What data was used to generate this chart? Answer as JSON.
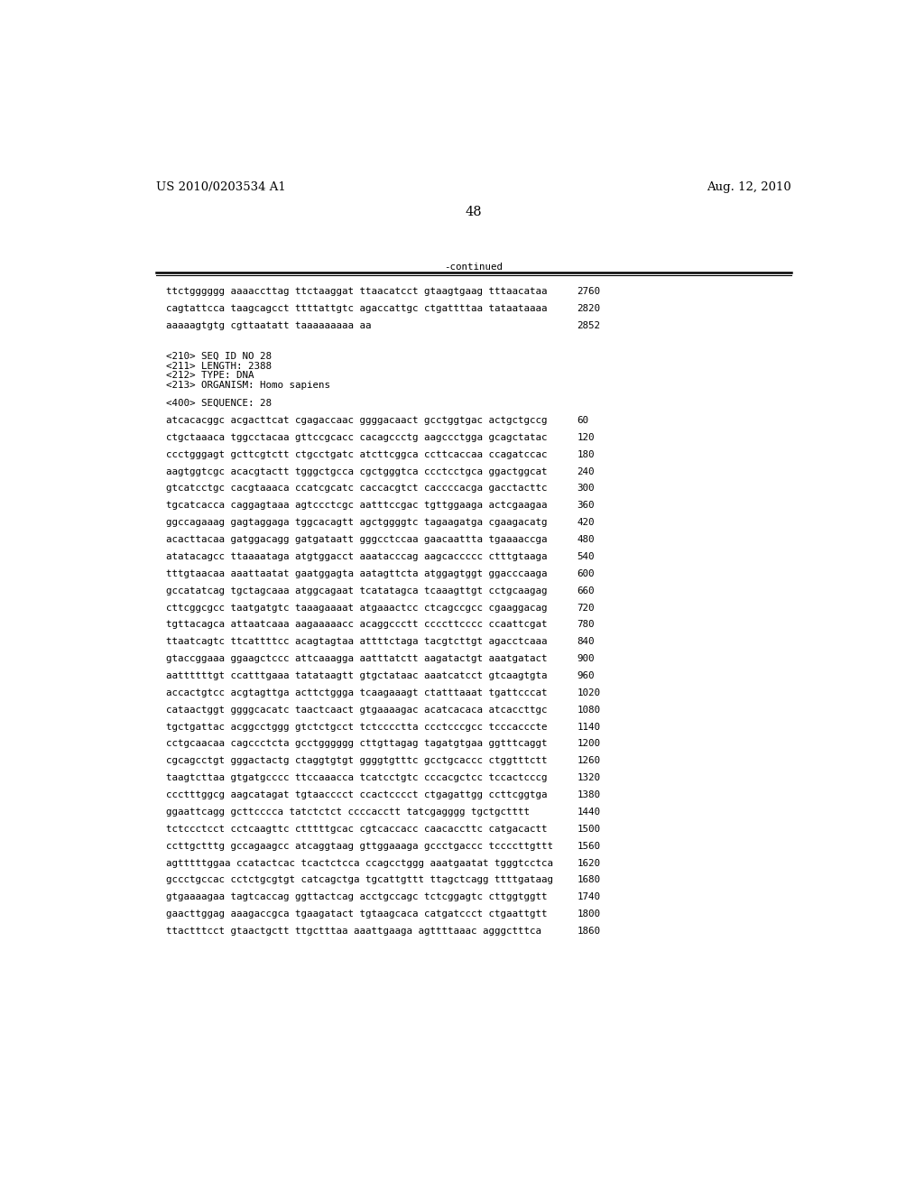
{
  "header_left": "US 2010/0203534 A1",
  "header_right": "Aug. 12, 2010",
  "page_number": "48",
  "continued_label": "-continued",
  "background_color": "#ffffff",
  "text_color": "#000000",
  "font_size_header": 9.5,
  "font_size_page": 10.5,
  "font_size_mono": 7.8,
  "continued_lines": [
    [
      "ttctgggggg aaaaccttag ttctaaggat ttaacatcct gtaagtgaag tttaacataa",
      "2760"
    ],
    [
      "cagtattcca taagcagcct ttttattgtc agaccattgc ctgattttaa tataataaaa",
      "2820"
    ],
    [
      "aaaaagtgtg cgttaatatt taaaaaaaaa aa",
      "2852"
    ]
  ],
  "seq_info": [
    "<210> SEQ ID NO 28",
    "<211> LENGTH: 2388",
    "<212> TYPE: DNA",
    "<213> ORGANISM: Homo sapiens"
  ],
  "seq_label": "<400> SEQUENCE: 28",
  "sequence_lines": [
    [
      "atcacacggc acgacttcat cgagaccaac ggggacaact gcctggtgac actgctgccg",
      "60"
    ],
    [
      "ctgctaaaca tggcctacaa gttccgcacc cacagccctg aagccctgga gcagctatac",
      "120"
    ],
    [
      "ccctgggagt gcttcgtctt ctgcctgatc atcttcggca ccttcaccaa ccagatccac",
      "180"
    ],
    [
      "aagtggtcgc acacgtactt tgggctgcca cgctgggtca ccctcctgca ggactggcat",
      "240"
    ],
    [
      "gtcatcctgc cacgtaaaca ccatcgcatc caccacgtct caccccacga gacctacttc",
      "300"
    ],
    [
      "tgcatcacca caggagtaaa agtccctcgc aatttccgac tgttggaaga actcgaagaa",
      "360"
    ],
    [
      "ggccagaaag gagtaggaga tggcacagtt agctggggtc tagaagatga cgaagacatg",
      "420"
    ],
    [
      "acacttacaa gatggacagg gatgataatt gggcctccaa gaacaattta tgaaaaccga",
      "480"
    ],
    [
      "atatacagcc ttaaaataga atgtggacct aaatacccag aagcaccccc ctttgtaaga",
      "540"
    ],
    [
      "tttgtaacaa aaattaatat gaatggagta aatagttcta atggagtggt ggacccaaga",
      "600"
    ],
    [
      "gccatatcag tgctagcaaa atggcagaat tcatatagca tcaaagttgt cctgcaagag",
      "660"
    ],
    [
      "cttcggcgcc taatgatgtc taaagaaaat atgaaactcc ctcagccgcc cgaaggacag",
      "720"
    ],
    [
      "tgttacagca attaatcaaa aagaaaaacc acaggccctt ccccttcccc ccaattcgat",
      "780"
    ],
    [
      "ttaatcagtc ttcattttcc acagtagtaa attttctaga tacgtcttgt agacctcaaa",
      "840"
    ],
    [
      "gtaccggaaa ggaagctccc attcaaagga aatttatctt aagatactgt aaatgatact",
      "900"
    ],
    [
      "aattttttgt ccatttgaaa tatataagtt gtgctataac aaatcatcct gtcaagtgta",
      "960"
    ],
    [
      "accactgtcc acgtagttga acttctggga tcaagaaagt ctatttaaat tgattcccat",
      "1020"
    ],
    [
      "cataactggt ggggcacatc taactcaact gtgaaaagac acatcacaca atcaccttgc",
      "1080"
    ],
    [
      "tgctgattac acggcctggg gtctctgcct tctcccctta ccctcccgcc tcccacccte",
      "1140"
    ],
    [
      "cctgcaacaa cagccctcta gcctgggggg cttgttagag tagatgtgaa ggtttcaggt",
      "1200"
    ],
    [
      "cgcagcctgt gggactactg ctaggtgtgt ggggtgtttc gcctgcaccc ctggtttctt",
      "1260"
    ],
    [
      "taagtcttaa gtgatgcccc ttccaaacca tcatcctgtc cccacgctcc tccactcccg",
      "1320"
    ],
    [
      "ccctttggcg aagcatagat tgtaacccct ccactcccct ctgagattgg ccttcggtga",
      "1380"
    ],
    [
      "ggaattcagg gcttcccca tatctctct ccccacctt tatcgagggg tgctgctttt",
      "1440"
    ],
    [
      "tctccctcct cctcaagttc ctttttgcac cgtcaccacc caacaccttc catgacactt",
      "1500"
    ],
    [
      "ccttgctttg gccagaagcc atcaggtaag gttggaaaga gccctgaccc tccccttgttt",
      "1560"
    ],
    [
      "agtttttggaa ccatactcac tcactctcca ccagcctggg aaatgaatat tgggtcctca",
      "1620"
    ],
    [
      "gccctgccac cctctgcgtgt catcagctga tgcattgttt ttagctcagg ttttgataag",
      "1680"
    ],
    [
      "gtgaaaagaa tagtcaccag ggttactcag acctgccagc tctcggagtc cttggtggtt",
      "1740"
    ],
    [
      "gaacttggag aaagaccgca tgaagatact tgtaagcaca catgatccct ctgaattgtt",
      "1800"
    ],
    [
      "ttactttcct gtaactgctt ttgctttaa aaattgaaga agttttaaac agggctttca",
      "1860"
    ]
  ]
}
